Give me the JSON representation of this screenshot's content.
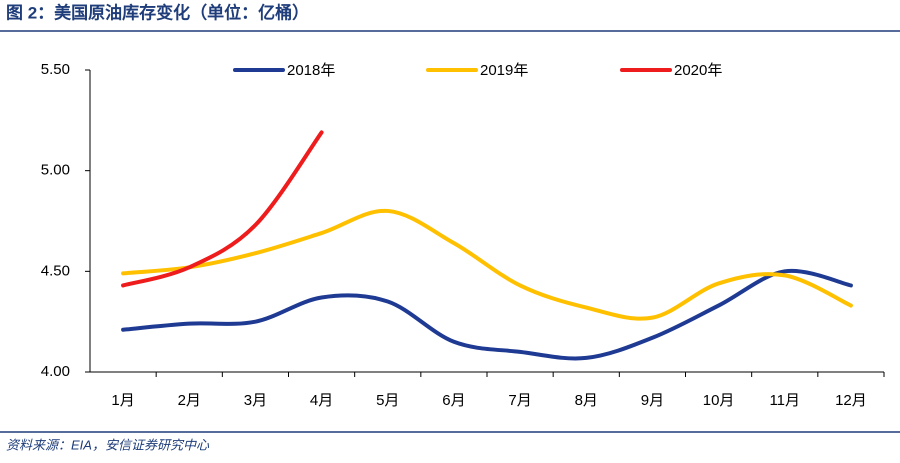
{
  "chart_data": {
    "type": "line",
    "title": "图 2：美国原油库存变化（单位：亿桶）",
    "source": "资料来源：EIA，安信证券研究中心",
    "categories": [
      "1月",
      "2月",
      "3月",
      "4月",
      "5月",
      "6月",
      "7月",
      "8月",
      "9月",
      "10月",
      "11月",
      "12月"
    ],
    "series": [
      {
        "name": "2018年",
        "color": "#1f3a93",
        "values": [
          4.21,
          4.24,
          4.25,
          4.37,
          4.35,
          4.15,
          4.1,
          4.07,
          4.17,
          4.33,
          4.5,
          4.43
        ]
      },
      {
        "name": "2019年",
        "color": "#ffc000",
        "values": [
          4.49,
          4.52,
          4.59,
          4.69,
          4.8,
          4.64,
          4.43,
          4.32,
          4.27,
          4.44,
          4.48,
          4.33
        ]
      },
      {
        "name": "2020年",
        "color": "#ee1c1c",
        "values": [
          4.43,
          4.52,
          4.73,
          5.19,
          null,
          null,
          null,
          null,
          null,
          null,
          null,
          null
        ]
      }
    ],
    "ylim": [
      4,
      5.5
    ],
    "yticks": [
      {
        "value": 4,
        "label": "4.00"
      },
      {
        "value": 4.5,
        "label": "4.50"
      },
      {
        "value": 5,
        "label": "5.00"
      },
      {
        "value": 5.5,
        "label": "5.50"
      }
    ],
    "grid": false
  }
}
